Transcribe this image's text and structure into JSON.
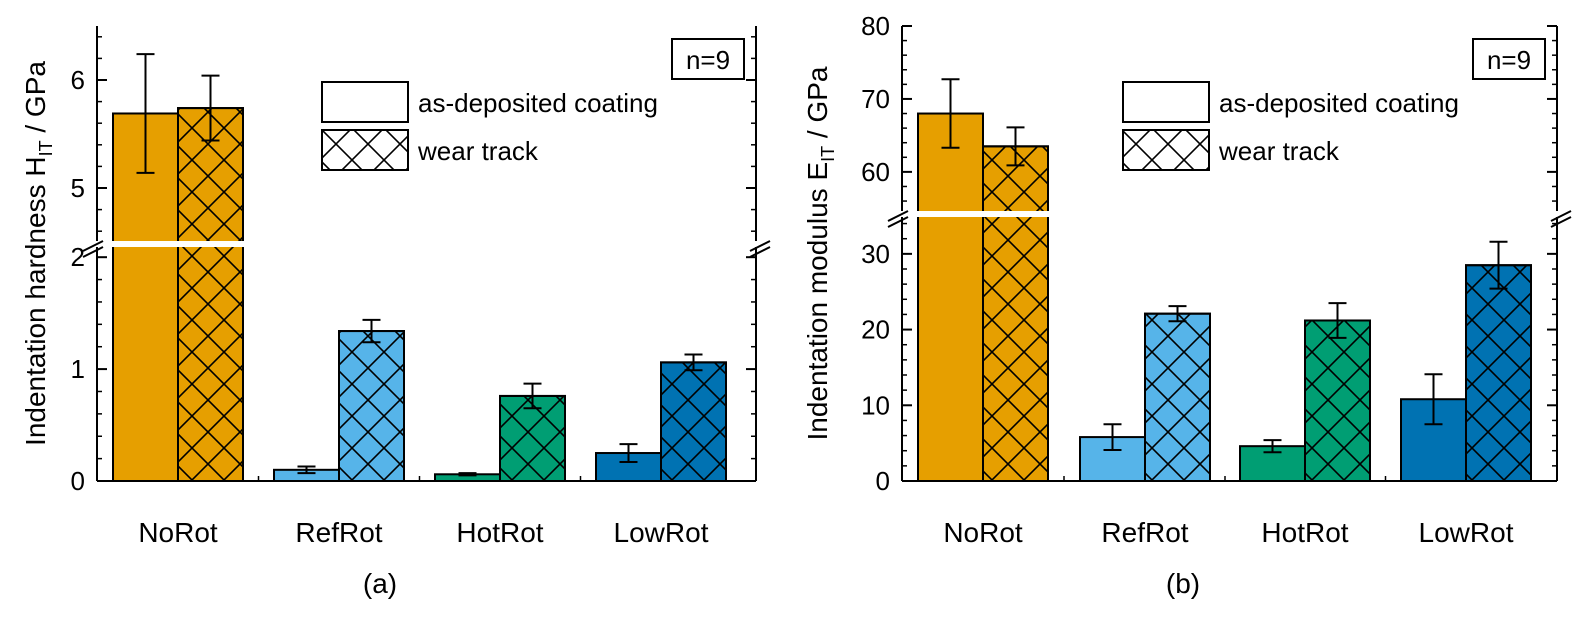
{
  "figure": {
    "panels": [
      "(a)",
      "(b)"
    ]
  },
  "colors": {
    "NoRot": "#E69F00",
    "RefRot": "#56B4E9",
    "HotRot": "#009E73",
    "LowRot": "#0072B2"
  },
  "chart_data": [
    {
      "type": "bar",
      "panel_label": "(a)",
      "title": "",
      "ylabel": "Indentation hardness H",
      "ylabel_sub": "IT",
      "ylabel_unit": " / GPa",
      "xlabel": "",
      "categories": [
        "NoRot",
        "RefRot",
        "HotRot",
        "LowRot"
      ],
      "series": [
        {
          "name": "as-deposited coating",
          "hatch": false,
          "values": [
            5.69,
            0.1,
            0.06,
            0.25
          ],
          "errors": [
            0.55,
            0.03,
            0.01,
            0.08
          ]
        },
        {
          "name": "wear track",
          "hatch": true,
          "values": [
            5.74,
            1.34,
            0.76,
            1.06
          ],
          "errors": [
            0.3,
            0.1,
            0.11,
            0.07
          ]
        }
      ],
      "broken_axis": {
        "lower": {
          "ylim": [
            0,
            2.1
          ],
          "ticks": [
            0,
            1,
            2
          ],
          "minor_step": 0.2
        },
        "upper": {
          "ylim": [
            4.5,
            6.5
          ],
          "ticks": [
            5,
            6
          ],
          "minor_step": 0.2
        }
      },
      "annotation": "n=9",
      "legend": {
        "position": "top-right",
        "entries": [
          "as-deposited coating",
          "wear track"
        ]
      }
    },
    {
      "type": "bar",
      "panel_label": "(b)",
      "title": "",
      "ylabel": "Indentation modulus E",
      "ylabel_sub": "IT",
      "ylabel_unit": " / GPa",
      "xlabel": "",
      "categories": [
        "NoRot",
        "RefRot",
        "HotRot",
        "LowRot"
      ],
      "series": [
        {
          "name": "as-deposited coating",
          "hatch": false,
          "values": [
            68,
            5.8,
            4.6,
            10.8
          ],
          "errors": [
            4.7,
            1.7,
            0.8,
            3.3
          ]
        },
        {
          "name": "wear track",
          "hatch": true,
          "values": [
            63.5,
            22.1,
            21.2,
            28.5
          ],
          "errors": [
            2.6,
            1.0,
            2.3,
            3.1
          ]
        }
      ],
      "broken_axis": {
        "lower": {
          "ylim": [
            0,
            35
          ],
          "ticks": [
            0,
            10,
            20,
            30
          ],
          "minor_step": 2
        },
        "upper": {
          "ylim": [
            54.5,
            80
          ],
          "ticks": [
            60,
            70,
            80
          ],
          "minor_step": 2
        }
      },
      "annotation": "n=9",
      "legend": {
        "position": "top-right",
        "entries": [
          "as-deposited coating",
          "wear track"
        ]
      }
    }
  ]
}
